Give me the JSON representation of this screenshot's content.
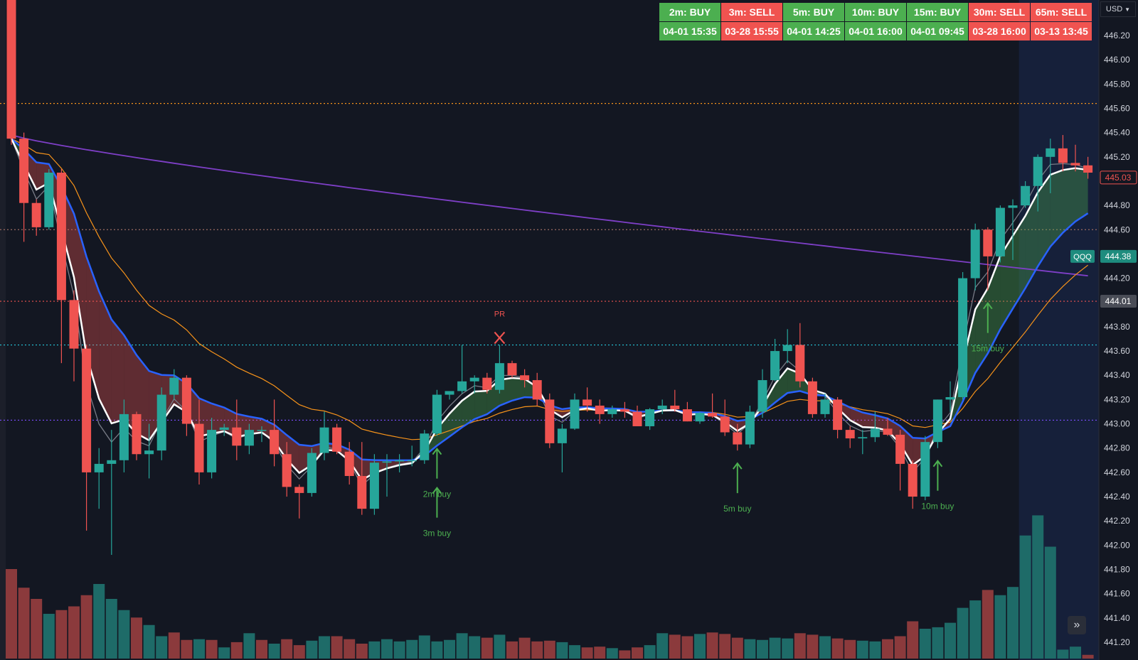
{
  "currency": "USD",
  "scroll_label": "»",
  "signal_table": [
    {
      "label": "2m: BUY",
      "date": "04-01 15:35",
      "state": "buy"
    },
    {
      "label": "3m: SELL",
      "date": "03-28 15:55",
      "state": "sell"
    },
    {
      "label": "5m: BUY",
      "date": "04-01 14:25",
      "state": "buy"
    },
    {
      "label": "10m: BUY",
      "date": "04-01 16:00",
      "state": "buy"
    },
    {
      "label": "15m: BUY",
      "date": "04-01 09:45",
      "state": "buy"
    },
    {
      "label": "30m: SELL",
      "date": "03-28 16:00",
      "state": "sell"
    },
    {
      "label": "65m: SELL",
      "date": "03-13 13:45",
      "state": "sell"
    }
  ],
  "colors": {
    "background": "#131722",
    "up": "#26a69a",
    "down": "#ef5350",
    "vol_up": "#1e6b68",
    "vol_down": "#8b3a3c",
    "ema_fast": "#ffffff",
    "ema_slow": "#2962ff",
    "sma_gray": "#787b86",
    "orange": "#f7931a",
    "purple": "#7e3fc7",
    "signal_green": "#4caf50",
    "signal_red": "#f05350"
  },
  "chart_data": {
    "type": "candlestick",
    "symbol": "QQQ",
    "last_price": "444.38",
    "last_close": "445.03",
    "ylim": [
      441.1,
      446.5
    ],
    "y_ticks": [
      "446.20",
      "446.00",
      "445.80",
      "445.60",
      "445.40",
      "445.20",
      "445.00",
      "444.80",
      "444.60",
      "444.40",
      "444.20",
      "444.00",
      "443.80",
      "443.60",
      "443.40",
      "443.20",
      "443.00",
      "442.80",
      "442.60",
      "442.40",
      "442.20",
      "442.00",
      "441.80",
      "441.60",
      "441.40",
      "441.20"
    ],
    "level_lines": [
      {
        "value": 445.64,
        "color": "#f7931a",
        "style": "dotted"
      },
      {
        "value": 444.6,
        "color": "#9c6b62",
        "style": "dotted"
      },
      {
        "value": 444.01,
        "color": "#ef5350",
        "style": "dotted",
        "label": "444.01"
      },
      {
        "value": 443.65,
        "color": "#26c6da",
        "style": "dotted"
      },
      {
        "value": 443.03,
        "color": "#7c4dff",
        "style": "dotted"
      }
    ],
    "candles": [
      {
        "o": 446.5,
        "h": 446.6,
        "l": 445.3,
        "c": 445.35
      },
      {
        "o": 445.35,
        "h": 445.4,
        "l": 444.5,
        "c": 444.82
      },
      {
        "o": 444.82,
        "h": 444.85,
        "l": 444.55,
        "c": 444.62
      },
      {
        "o": 444.62,
        "h": 445.1,
        "l": 444.6,
        "c": 445.07
      },
      {
        "o": 445.07,
        "h": 445.1,
        "l": 443.5,
        "c": 444.02
      },
      {
        "o": 444.02,
        "h": 444.1,
        "l": 443.35,
        "c": 443.62
      },
      {
        "o": 443.62,
        "h": 443.65,
        "l": 442.12,
        "c": 442.6
      },
      {
        "o": 442.6,
        "h": 442.8,
        "l": 442.3,
        "c": 442.67
      },
      {
        "o": 442.67,
        "h": 442.95,
        "l": 441.92,
        "c": 442.7
      },
      {
        "o": 442.7,
        "h": 443.2,
        "l": 442.6,
        "c": 443.08
      },
      {
        "o": 443.08,
        "h": 443.1,
        "l": 442.7,
        "c": 442.75
      },
      {
        "o": 442.75,
        "h": 443.0,
        "l": 442.55,
        "c": 442.78
      },
      {
        "o": 442.78,
        "h": 443.3,
        "l": 442.7,
        "c": 443.24
      },
      {
        "o": 443.24,
        "h": 443.45,
        "l": 443.2,
        "c": 443.38
      },
      {
        "o": 443.38,
        "h": 443.4,
        "l": 442.9,
        "c": 443.0
      },
      {
        "o": 443.0,
        "h": 443.2,
        "l": 442.5,
        "c": 442.6
      },
      {
        "o": 442.6,
        "h": 443.05,
        "l": 442.55,
        "c": 442.95
      },
      {
        "o": 442.95,
        "h": 443.0,
        "l": 442.9,
        "c": 442.97
      },
      {
        "o": 442.97,
        "h": 443.2,
        "l": 442.7,
        "c": 442.82
      },
      {
        "o": 442.82,
        "h": 443.0,
        "l": 442.75,
        "c": 442.95
      },
      {
        "o": 442.95,
        "h": 442.98,
        "l": 442.85,
        "c": 442.95
      },
      {
        "o": 442.95,
        "h": 443.2,
        "l": 442.65,
        "c": 442.75
      },
      {
        "o": 442.75,
        "h": 442.85,
        "l": 442.4,
        "c": 442.48
      },
      {
        "o": 442.48,
        "h": 442.5,
        "l": 442.22,
        "c": 442.43
      },
      {
        "o": 442.43,
        "h": 442.8,
        "l": 442.4,
        "c": 442.76
      },
      {
        "o": 442.76,
        "h": 443.1,
        "l": 442.7,
        "c": 442.97
      },
      {
        "o": 442.97,
        "h": 443.0,
        "l": 442.75,
        "c": 442.77
      },
      {
        "o": 442.77,
        "h": 442.85,
        "l": 442.5,
        "c": 442.57
      },
      {
        "o": 442.57,
        "h": 442.85,
        "l": 442.25,
        "c": 442.3
      },
      {
        "o": 442.3,
        "h": 442.75,
        "l": 442.25,
        "c": 442.68
      },
      {
        "o": 442.68,
        "h": 442.75,
        "l": 442.4,
        "c": 442.69
      },
      {
        "o": 442.69,
        "h": 442.75,
        "l": 442.6,
        "c": 442.7
      },
      {
        "o": 442.7,
        "h": 442.82,
        "l": 442.65,
        "c": 442.7
      },
      {
        "o": 442.7,
        "h": 442.95,
        "l": 442.67,
        "c": 442.92
      },
      {
        "o": 442.92,
        "h": 443.28,
        "l": 442.9,
        "c": 443.24
      },
      {
        "o": 443.24,
        "h": 443.26,
        "l": 443.2,
        "c": 443.27
      },
      {
        "o": 443.27,
        "h": 443.65,
        "l": 443.25,
        "c": 443.35
      },
      {
        "o": 443.35,
        "h": 443.4,
        "l": 443.25,
        "c": 443.38
      },
      {
        "o": 443.38,
        "h": 443.42,
        "l": 443.25,
        "c": 443.28
      },
      {
        "o": 443.28,
        "h": 443.65,
        "l": 443.25,
        "c": 443.5
      },
      {
        "o": 443.5,
        "h": 443.52,
        "l": 443.38,
        "c": 443.4
      },
      {
        "o": 443.4,
        "h": 443.45,
        "l": 443.3,
        "c": 443.36
      },
      {
        "o": 443.36,
        "h": 443.42,
        "l": 443.15,
        "c": 443.2
      },
      {
        "o": 443.2,
        "h": 443.25,
        "l": 442.8,
        "c": 442.84
      },
      {
        "o": 442.84,
        "h": 443.0,
        "l": 442.6,
        "c": 442.96
      },
      {
        "o": 442.96,
        "h": 443.25,
        "l": 442.95,
        "c": 443.2
      },
      {
        "o": 443.2,
        "h": 443.3,
        "l": 443.1,
        "c": 443.15
      },
      {
        "o": 443.15,
        "h": 443.2,
        "l": 443.0,
        "c": 443.08
      },
      {
        "o": 443.08,
        "h": 443.15,
        "l": 443.05,
        "c": 443.12
      },
      {
        "o": 443.12,
        "h": 443.18,
        "l": 443.05,
        "c": 443.1
      },
      {
        "o": 443.1,
        "h": 443.15,
        "l": 442.98,
        "c": 442.98
      },
      {
        "o": 442.98,
        "h": 443.13,
        "l": 442.95,
        "c": 443.12
      },
      {
        "o": 443.12,
        "h": 443.2,
        "l": 443.08,
        "c": 443.15
      },
      {
        "o": 443.15,
        "h": 443.28,
        "l": 443.1,
        "c": 443.12
      },
      {
        "o": 443.12,
        "h": 443.18,
        "l": 443.02,
        "c": 443.02
      },
      {
        "o": 443.02,
        "h": 443.1,
        "l": 443.0,
        "c": 443.09
      },
      {
        "o": 443.09,
        "h": 443.25,
        "l": 443.05,
        "c": 443.06
      },
      {
        "o": 443.06,
        "h": 443.2,
        "l": 442.9,
        "c": 442.93
      },
      {
        "o": 442.93,
        "h": 443.0,
        "l": 442.78,
        "c": 442.83
      },
      {
        "o": 442.83,
        "h": 443.15,
        "l": 442.8,
        "c": 443.1
      },
      {
        "o": 443.1,
        "h": 443.45,
        "l": 443.05,
        "c": 443.36
      },
      {
        "o": 443.36,
        "h": 443.7,
        "l": 443.35,
        "c": 443.6
      },
      {
        "o": 443.6,
        "h": 443.78,
        "l": 443.5,
        "c": 443.65
      },
      {
        "o": 443.65,
        "h": 443.83,
        "l": 443.3,
        "c": 443.35
      },
      {
        "o": 443.35,
        "h": 443.38,
        "l": 443.05,
        "c": 443.08
      },
      {
        "o": 443.08,
        "h": 443.25,
        "l": 443.05,
        "c": 443.2
      },
      {
        "o": 443.2,
        "h": 443.22,
        "l": 442.88,
        "c": 442.95
      },
      {
        "o": 442.95,
        "h": 442.98,
        "l": 442.8,
        "c": 442.88
      },
      {
        "o": 442.88,
        "h": 442.95,
        "l": 442.75,
        "c": 442.89
      },
      {
        "o": 442.89,
        "h": 443.1,
        "l": 442.85,
        "c": 442.96
      },
      {
        "o": 442.96,
        "h": 443.05,
        "l": 442.9,
        "c": 442.91
      },
      {
        "o": 442.91,
        "h": 442.95,
        "l": 442.45,
        "c": 442.67
      },
      {
        "o": 442.67,
        "h": 442.7,
        "l": 442.3,
        "c": 442.4
      },
      {
        "o": 442.4,
        "h": 442.9,
        "l": 442.37,
        "c": 442.85
      },
      {
        "o": 442.85,
        "h": 443.2,
        "l": 442.8,
        "c": 443.2
      },
      {
        "o": 443.2,
        "h": 443.35,
        "l": 443.1,
        "c": 443.22
      },
      {
        "o": 443.22,
        "h": 444.25,
        "l": 443.2,
        "c": 444.2
      },
      {
        "o": 444.2,
        "h": 444.65,
        "l": 444.1,
        "c": 444.6
      },
      {
        "o": 444.6,
        "h": 444.62,
        "l": 444.1,
        "c": 444.38
      },
      {
        "o": 444.38,
        "h": 444.8,
        "l": 444.33,
        "c": 444.78
      },
      {
        "o": 444.78,
        "h": 444.85,
        "l": 444.35,
        "c": 444.8
      },
      {
        "o": 444.8,
        "h": 445.0,
        "l": 444.78,
        "c": 444.96
      },
      {
        "o": 444.96,
        "h": 445.22,
        "l": 444.75,
        "c": 445.2
      },
      {
        "o": 445.2,
        "h": 445.35,
        "l": 444.9,
        "c": 445.27
      },
      {
        "o": 445.27,
        "h": 445.38,
        "l": 445.08,
        "c": 445.15
      },
      {
        "o": 445.15,
        "h": 445.3,
        "l": 445.08,
        "c": 445.13
      },
      {
        "o": 445.13,
        "h": 445.2,
        "l": 445.02,
        "c": 445.07
      }
    ],
    "volume": [
      12,
      9.5,
      8,
      6,
      6.5,
      7,
      8.5,
      10,
      8,
      6.5,
      5.5,
      4.5,
      3,
      3.5,
      2.5,
      2.6,
      2.5,
      1.5,
      2.2,
      3.4,
      2.5,
      2,
      2.6,
      1.8,
      2.4,
      3,
      3,
      2.6,
      2,
      2.3,
      2.6,
      2.3,
      2.5,
      3.1,
      2.3,
      2.5,
      3.4,
      3,
      2.8,
      3.2,
      2.3,
      2.8,
      2.3,
      2.4,
      2.2,
      1.8,
      1.5,
      1.6,
      1.4,
      1.1,
      1.5,
      1.8,
      3.4,
      3.2,
      3,
      3.3,
      3.5,
      3.3,
      2.8,
      2.6,
      2.5,
      2.8,
      2.7,
      3.4,
      3.2,
      3,
      2.7,
      2.5,
      2.4,
      2.3,
      2.6,
      3,
      5,
      4,
      4.2,
      4.8,
      6.8,
      7.8,
      9.2,
      8.5,
      9.6,
      16.5,
      19.2,
      15,
      1.2,
      1.6,
      0.5
    ],
    "volume_up_flags": [
      0,
      0,
      0,
      1,
      0,
      0,
      0,
      1,
      1,
      1,
      0,
      1,
      1,
      0,
      0,
      1,
      0,
      1,
      0,
      1,
      0,
      1,
      0,
      0,
      1,
      1,
      0,
      0,
      0,
      1,
      1,
      1,
      1,
      1,
      1,
      1,
      1,
      1,
      0,
      1,
      0,
      0,
      0,
      0,
      1,
      1,
      0,
      0,
      1,
      0,
      0,
      1,
      1,
      0,
      0,
      1,
      0,
      0,
      0,
      1,
      1,
      1,
      1,
      0,
      0,
      1,
      0,
      0,
      1,
      1,
      0,
      0,
      0,
      1,
      1,
      1,
      1,
      1,
      0,
      1,
      1,
      1,
      1,
      1,
      1,
      1,
      0
    ],
    "annotations": [
      {
        "text": "2m buy",
        "bar": 34,
        "kind": "buy"
      },
      {
        "text": "3m buy",
        "bar": 34,
        "kind": "buy"
      },
      {
        "text": "5m buy",
        "bar": 58,
        "kind": "buy"
      },
      {
        "text": "10m buy",
        "bar": 74,
        "kind": "buy"
      },
      {
        "text": "15m buy",
        "bar": 78,
        "kind": "buy"
      },
      {
        "text": "PR",
        "bar": 39,
        "kind": "pr"
      }
    ]
  }
}
